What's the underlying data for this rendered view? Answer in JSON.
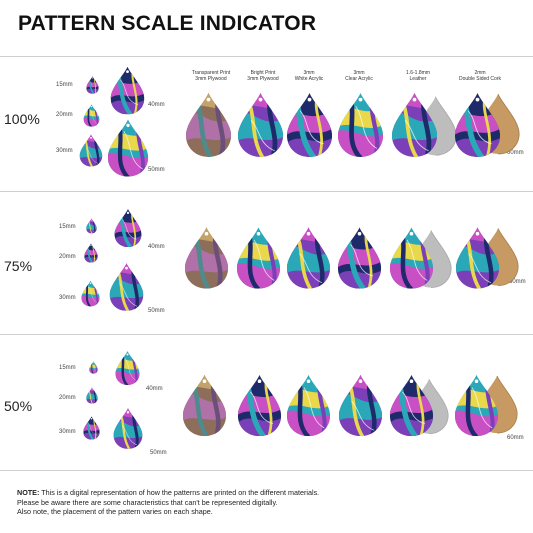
{
  "title": "PATTERN SCALE INDICATOR",
  "materials": [
    {
      "line1": "Transparent Print",
      "line2": "3mm Plywood"
    },
    {
      "line1": "Bright Print",
      "line2": "3mm Plywood"
    },
    {
      "line1": "3mm",
      "line2": "White Acrylic"
    },
    {
      "line1": "3mm",
      "line2": "Clear Acrylic"
    },
    {
      "line1": "1.6-1.8mm",
      "line2": "Leather"
    },
    {
      "line1": "2mm",
      "line2": "Double Sided Cork"
    }
  ],
  "sizes": [
    "15mm",
    "20mm",
    "30mm",
    "40mm",
    "50mm",
    "60mm"
  ],
  "scales": [
    {
      "label": "100%"
    },
    {
      "label": "75%"
    },
    {
      "label": "50%"
    }
  ],
  "note": {
    "label": "NOTE:",
    "line1": "This is a digital representation of how the patterns are printed on the different materials.",
    "line2": "Please be aware there are some characteristics that can't be represented digitally.",
    "line3": "Also note, the placement of the pattern varies on each shape."
  },
  "colors": {
    "purple": "#7b3fb8",
    "magenta": "#c94fc4",
    "teal": "#2aa8b8",
    "navy": "#1f2a6b",
    "yellow": "#e8d84a",
    "leather": "#bdbdbd",
    "cork": "#c79a63"
  }
}
